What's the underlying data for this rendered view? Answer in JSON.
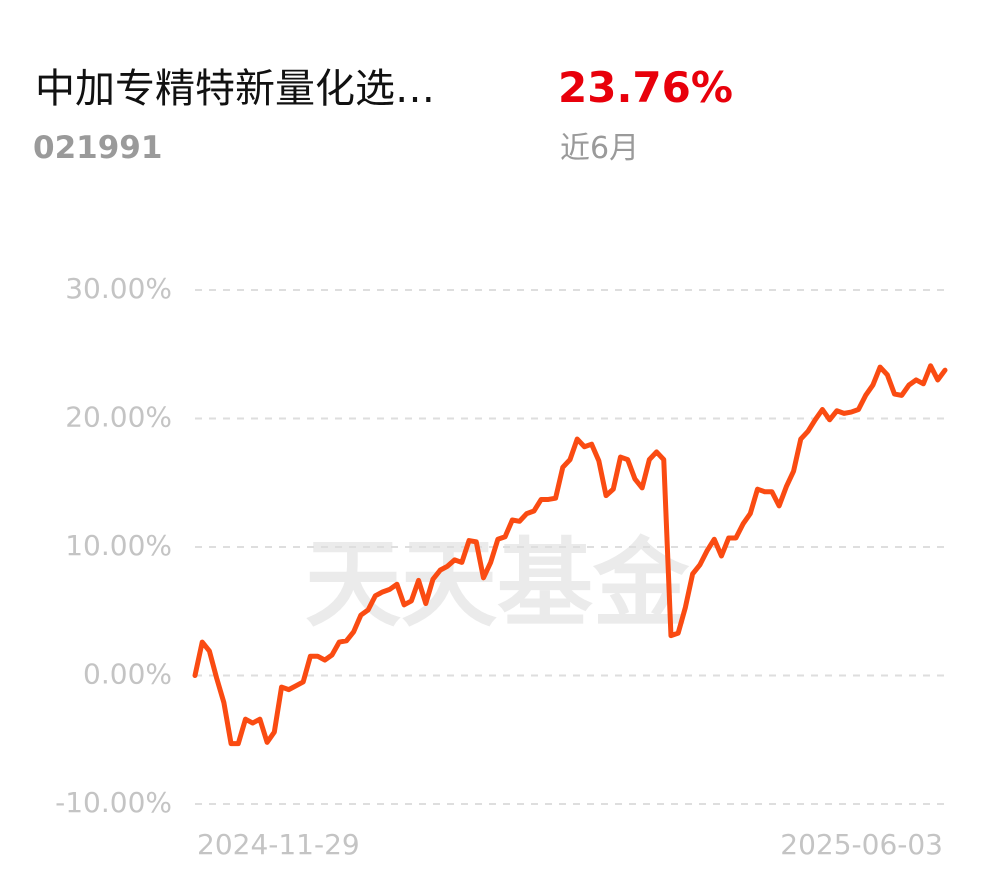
{
  "chart_data": {
    "type": "line",
    "title": "中加专精特新量化选…",
    "fund_code": "021991",
    "return_value": "23.76%",
    "return_period": "近6月",
    "watermark": "天天基金",
    "color": "#fa4b12",
    "categories": [
      "2024-11-29",
      null,
      null,
      null,
      null,
      null,
      null,
      null,
      null,
      null,
      null,
      null,
      null,
      null,
      null,
      null,
      null,
      null,
      null,
      null,
      null,
      null,
      null,
      null,
      null,
      null,
      null,
      null,
      null,
      null,
      null,
      null,
      null,
      null,
      null,
      null,
      null,
      null,
      null,
      null,
      null,
      null,
      null,
      null,
      null,
      null,
      null,
      null,
      null,
      null,
      null,
      null,
      null,
      null,
      null,
      null,
      null,
      null,
      null,
      null,
      null,
      null,
      null,
      null,
      null,
      null,
      null,
      null,
      null,
      null,
      null,
      null,
      null,
      null,
      null,
      null,
      null,
      null,
      null,
      null,
      null,
      null,
      null,
      null,
      null,
      null,
      null,
      null,
      null,
      null,
      null,
      null,
      null,
      null,
      null,
      null,
      null,
      null,
      null,
      null,
      null,
      null,
      null,
      null,
      "2025-06-03"
    ],
    "values": [
      0,
      2.6,
      1.9,
      -0.2,
      -2.1,
      -5.3,
      -5.3,
      -3.4,
      -3.7,
      -3.4,
      -5.2,
      -4.4,
      -0.9,
      -1.1,
      -0.8,
      -0.5,
      1.5,
      1.5,
      1.2,
      1.6,
      2.6,
      2.7,
      3.4,
      4.7,
      5.1,
      6.2,
      6.5,
      6.7,
      7.1,
      5.5,
      5.8,
      7.4,
      5.6,
      7.5,
      8.2,
      8.5,
      9.0,
      8.8,
      10.5,
      10.4,
      7.6,
      8.8,
      10.6,
      10.8,
      12.1,
      12.0,
      12.6,
      12.8,
      13.7,
      13.7,
      13.8,
      16.2,
      16.8,
      18.4,
      17.8,
      18.0,
      16.7,
      14.0,
      14.5,
      17.0,
      16.8,
      15.3,
      14.6,
      16.8,
      17.4,
      16.8,
      3.1,
      3.3,
      5.3,
      7.9,
      8.6,
      9.7,
      10.6,
      9.3,
      10.7,
      10.7,
      11.8,
      12.6,
      14.5,
      14.3,
      14.3,
      13.2,
      14.7,
      15.9,
      18.4,
      19.0,
      19.9,
      20.7,
      19.9,
      20.6,
      20.4,
      20.5,
      20.7,
      21.8,
      22.6,
      24.0,
      23.4,
      21.9,
      21.8,
      22.6,
      23.0,
      22.7,
      24.1,
      23.0,
      23.76
    ],
    "ylim": [
      -10,
      30
    ],
    "yticks": [
      {
        "value": 30,
        "label": "30.00%"
      },
      {
        "value": 20,
        "label": "20.00%"
      },
      {
        "value": 10,
        "label": "10.00%"
      },
      {
        "value": 0,
        "label": "0.00%"
      },
      {
        "value": -10,
        "label": "-10.00%"
      }
    ],
    "grid": true
  }
}
